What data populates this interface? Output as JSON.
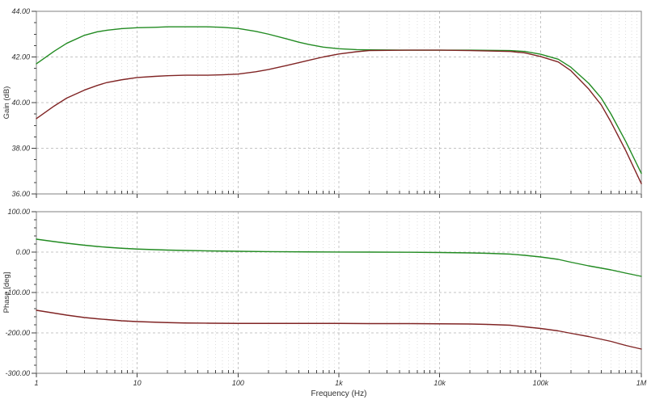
{
  "figure": {
    "xlabel": "Frequency (Hz)",
    "x_tick_labels": [
      "1",
      "10",
      "100",
      "1k",
      "10k",
      "100k",
      "1M"
    ]
  },
  "theme": {
    "background": "#ffffff",
    "frame_color": "#808080",
    "grid_major_color": "#c4c4c4",
    "grid_minor_color": "#dddddd",
    "tick_color": "#404040",
    "text_color": "#303030",
    "trace_green": "#228b22",
    "trace_dark_red": "#802424"
  },
  "chart_data": [
    {
      "type": "line",
      "panel": "gain",
      "ylabel": "Gain (dB)",
      "x_scale": "log",
      "x_range": [
        1,
        1000000
      ],
      "ylim": [
        36,
        44
      ],
      "grid": true,
      "legend": "none",
      "show_x_tick_labels": false,
      "y_minor_step": 0.5,
      "y_ticks": [
        {
          "value": 44,
          "label": "44.00"
        },
        {
          "value": 42,
          "label": "42.00"
        },
        {
          "value": 40,
          "label": "40.00"
        },
        {
          "value": 38,
          "label": "38.00"
        },
        {
          "value": 36,
          "label": "36.00"
        }
      ],
      "series": [
        {
          "name": "green-trace",
          "color_key": "trace_green",
          "points": [
            [
              1,
              41.7
            ],
            [
              1.5,
              42.25
            ],
            [
              2,
              42.6
            ],
            [
              3,
              42.95
            ],
            [
              4,
              43.1
            ],
            [
              5,
              43.17
            ],
            [
              7,
              43.24
            ],
            [
              10,
              43.28
            ],
            [
              15,
              43.3
            ],
            [
              20,
              43.32
            ],
            [
              30,
              43.32
            ],
            [
              50,
              43.32
            ],
            [
              70,
              43.3
            ],
            [
              100,
              43.25
            ],
            [
              150,
              43.12
            ],
            [
              200,
              43.0
            ],
            [
              300,
              42.8
            ],
            [
              400,
              42.65
            ],
            [
              500,
              42.55
            ],
            [
              700,
              42.43
            ],
            [
              1000,
              42.36
            ],
            [
              1500,
              42.32
            ],
            [
              2000,
              42.31
            ],
            [
              5000,
              42.3
            ],
            [
              10000,
              42.3
            ],
            [
              20000,
              42.3
            ],
            [
              50000,
              42.28
            ],
            [
              70000,
              42.24
            ],
            [
              100000,
              42.12
            ],
            [
              150000,
              41.9
            ],
            [
              200000,
              41.55
            ],
            [
              300000,
              40.85
            ],
            [
              400000,
              40.2
            ],
            [
              500000,
              39.5
            ],
            [
              700000,
              38.3
            ],
            [
              1000000,
              36.9
            ]
          ]
        },
        {
          "name": "dark-red-trace",
          "color_key": "trace_dark_red",
          "points": [
            [
              1,
              39.3
            ],
            [
              1.5,
              39.85
            ],
            [
              2,
              40.2
            ],
            [
              3,
              40.55
            ],
            [
              4,
              40.75
            ],
            [
              5,
              40.88
            ],
            [
              7,
              41.0
            ],
            [
              10,
              41.1
            ],
            [
              15,
              41.15
            ],
            [
              20,
              41.18
            ],
            [
              30,
              41.2
            ],
            [
              50,
              41.2
            ],
            [
              70,
              41.22
            ],
            [
              100,
              41.25
            ],
            [
              150,
              41.35
            ],
            [
              200,
              41.45
            ],
            [
              300,
              41.62
            ],
            [
              400,
              41.75
            ],
            [
              500,
              41.85
            ],
            [
              700,
              42.0
            ],
            [
              1000,
              42.13
            ],
            [
              1500,
              42.23
            ],
            [
              2000,
              42.28
            ],
            [
              5000,
              42.3
            ],
            [
              10000,
              42.3
            ],
            [
              20000,
              42.28
            ],
            [
              50000,
              42.24
            ],
            [
              70000,
              42.18
            ],
            [
              100000,
              42.02
            ],
            [
              150000,
              41.78
            ],
            [
              200000,
              41.4
            ],
            [
              300000,
              40.6
            ],
            [
              400000,
              39.9
            ],
            [
              500000,
              39.15
            ],
            [
              700000,
              37.9
            ],
            [
              1000000,
              36.45
            ]
          ]
        }
      ]
    },
    {
      "type": "line",
      "panel": "phase",
      "ylabel": "Phase [deg]",
      "x_scale": "log",
      "x_range": [
        1,
        1000000
      ],
      "ylim": [
        -300,
        100
      ],
      "grid": true,
      "legend": "none",
      "show_x_tick_labels": true,
      "y_minor_step": 20,
      "y_ticks": [
        {
          "value": 100,
          "label": "100.00"
        },
        {
          "value": 0,
          "label": "0.00"
        },
        {
          "value": -100,
          "label": "-100.00"
        },
        {
          "value": -200,
          "label": "-200.00"
        },
        {
          "value": -300,
          "label": "-300.00"
        }
      ],
      "series": [
        {
          "name": "green-trace",
          "color_key": "trace_green",
          "points": [
            [
              1,
              32
            ],
            [
              1.5,
              26
            ],
            [
              2,
              22
            ],
            [
              3,
              17
            ],
            [
              4,
              14
            ],
            [
              5,
              12
            ],
            [
              7,
              9.5
            ],
            [
              10,
              7.5
            ],
            [
              15,
              6
            ],
            [
              20,
              5
            ],
            [
              30,
              4
            ],
            [
              50,
              3
            ],
            [
              70,
              2.5
            ],
            [
              100,
              2
            ],
            [
              200,
              1.2
            ],
            [
              500,
              0.5
            ],
            [
              1000,
              0.2
            ],
            [
              2000,
              0
            ],
            [
              5000,
              -0.3
            ],
            [
              10000,
              -1
            ],
            [
              20000,
              -2
            ],
            [
              30000,
              -3
            ],
            [
              50000,
              -5
            ],
            [
              70000,
              -8
            ],
            [
              100000,
              -12
            ],
            [
              150000,
              -18
            ],
            [
              200000,
              -25
            ],
            [
              300000,
              -34
            ],
            [
              500000,
              -44
            ],
            [
              700000,
              -52
            ],
            [
              1000000,
              -60
            ]
          ]
        },
        {
          "name": "dark-red-trace",
          "color_key": "trace_dark_red",
          "points": [
            [
              1,
              -144
            ],
            [
              1.5,
              -151
            ],
            [
              2,
              -156
            ],
            [
              3,
              -162
            ],
            [
              4,
              -165
            ],
            [
              5,
              -167
            ],
            [
              7,
              -170
            ],
            [
              10,
              -172
            ],
            [
              15,
              -173.5
            ],
            [
              20,
              -174.5
            ],
            [
              30,
              -175.5
            ],
            [
              50,
              -176
            ],
            [
              100,
              -176.5
            ],
            [
              200,
              -176.5
            ],
            [
              500,
              -176.5
            ],
            [
              1000,
              -176.5
            ],
            [
              2000,
              -177
            ],
            [
              5000,
              -177
            ],
            [
              10000,
              -177.5
            ],
            [
              20000,
              -178
            ],
            [
              30000,
              -179
            ],
            [
              50000,
              -181
            ],
            [
              70000,
              -185
            ],
            [
              100000,
              -189
            ],
            [
              150000,
              -195
            ],
            [
              200000,
              -201
            ],
            [
              300000,
              -209
            ],
            [
              500000,
              -221
            ],
            [
              700000,
              -231
            ],
            [
              1000000,
              -240
            ]
          ]
        }
      ]
    }
  ]
}
